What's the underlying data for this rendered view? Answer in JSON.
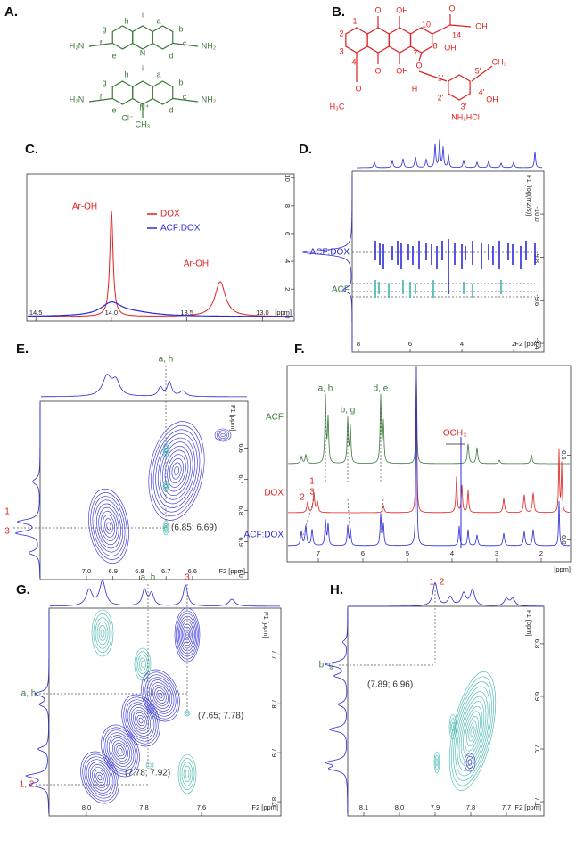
{
  "panels": [
    {
      "label": "A.",
      "structure": {
        "color": "#3b7a3b",
        "labels": [
          "h",
          "i",
          "a",
          "g",
          "b",
          "H₂N",
          "f",
          "c",
          "NH₂",
          "e",
          "N",
          "d",
          "h",
          "i",
          "a",
          "g",
          "b",
          "H₂N",
          "f",
          "c",
          "NH₂",
          "e",
          "Cl⁻",
          "N⁺",
          "d",
          "CH₃"
        ]
      }
    },
    {
      "label": "B.",
      "structure": {
        "color": "#e02020",
        "labels": [
          "1",
          "2",
          "3",
          "4",
          "O",
          "OH",
          "O",
          "OH",
          "10",
          "O",
          "14",
          "OH",
          "OH",
          "8",
          "7",
          "O",
          "H₃C",
          "O",
          "H",
          "1'",
          "2'",
          "3'",
          "4'",
          "5'",
          "CH₃",
          "OH",
          "NH₂HCl"
        ]
      }
    },
    {
      "label": "C.",
      "xlabel": "[ppm]",
      "xlim": [
        14.56,
        12.79
      ],
      "xticks": [
        14.5,
        {
          "value": 14,
          "label": "14.0"
        },
        13.5,
        {
          "value": 13,
          "label": "13.0"
        }
      ],
      "ylim": [
        -0.3,
        10.3
      ],
      "yticks": [
        0,
        2,
        4,
        6,
        8,
        10
      ],
      "legend": [
        {
          "name": "DOX",
          "color": "#e02020"
        },
        {
          "name": "ACF:DOX",
          "color": "#2a2ad8"
        }
      ],
      "annotations": [
        {
          "text": "Ar-OH",
          "color": "#e02020"
        },
        {
          "text": "Ar-OH",
          "color": "#e02020"
        }
      ]
    },
    {
      "label": "D.",
      "xlabel": "F2 [ppm]",
      "ylabel": "F1 [log(m2/s)]",
      "xlim": [
        8.24,
        0.83
      ],
      "xticks": [
        8,
        6,
        4,
        2
      ],
      "ylim": [
        -9.359,
        -10.199
      ],
      "yticks": [
        {
          "value": -10,
          "label": "-10.0"
        },
        -9.8,
        -9.6,
        -9.4
      ],
      "annotations": [
        {
          "text": "ACF:DOX",
          "color": "#2a2ad8"
        },
        {
          "text": "ACF",
          "color": "#3b7a3b"
        }
      ]
    },
    {
      "label": "E.",
      "xlabel": "F2 [ppm]",
      "ylabel": "F1 [ppm]",
      "xlim": [
        7.175,
        6.391
      ],
      "xticks": [
        {
          "value": 7,
          "label": "7.0"
        },
        6.9,
        6.8,
        6.7,
        6.6
      ],
      "ylim": [
        7.021,
        6.45
      ],
      "yticks": [
        6.6,
        6.7,
        6.8,
        6.9,
        {
          "value": 7,
          "label": "7.0"
        }
      ],
      "annotations": [
        {
          "text": "a, h",
          "color": "#3b7a3b"
        },
        {
          "text": "1",
          "color": "#e02020"
        },
        {
          "text": "3",
          "color": "#e02020"
        },
        {
          "text": "(6.85; 6.69)",
          "color": "#333333"
        }
      ]
    },
    {
      "label": "F.",
      "xlabel": "[ppm]",
      "xlim": [
        7.7,
        1.34
      ],
      "xticks": [
        7,
        6,
        5,
        4,
        3,
        2
      ],
      "ylim": [
        -0.13,
        1.03
      ],
      "yticks": [
        {
          "value": 0,
          "label": "0.0"
        },
        0.5
      ],
      "annotations": [
        {
          "text": "ACF",
          "color": "#3b7a3b"
        },
        {
          "text": "DOX",
          "color": "#e02020"
        },
        {
          "text": "ACF:DOX",
          "color": "#2a2ad8"
        },
        {
          "text": "a, h",
          "color": "#3b7a3b"
        },
        {
          "text": "b, g",
          "color": "#3b7a3b"
        },
        {
          "text": "d, e",
          "color": "#3b7a3b"
        },
        {
          "text": "OCH₃",
          "color": "#e02020"
        },
        {
          "text": "2",
          "color": "#e02020"
        },
        {
          "text": "1",
          "color": "#e02020"
        },
        {
          "text": "3",
          "color": "#e02020"
        }
      ]
    },
    {
      "label": "G.",
      "xlabel": "F2 [ppm]",
      "ylabel": "F1 [ppm]",
      "xlim": [
        8.13,
        7.324
      ],
      "xticks": [
        {
          "value": 8,
          "label": "8.0"
        },
        7.8,
        7.6
      ],
      "ylim": [
        8.029,
        7.605
      ],
      "yticks": [
        7.7,
        7.8,
        7.9,
        {
          "value": 8,
          "label": "8.0"
        }
      ],
      "annotations": [
        {
          "text": "a, h",
          "color": "#3b7a3b"
        },
        {
          "text": "3",
          "color": "#e02020"
        },
        {
          "text": "a, h",
          "color": "#3b7a3b"
        },
        {
          "text": "1, 2",
          "color": "#e02020"
        },
        {
          "text": "(7.65; 7.78)",
          "color": "#333333"
        },
        {
          "text": "(7.78; 7.92)",
          "color": "#333333"
        }
      ]
    },
    {
      "label": "H.",
      "xlabel": "F2 [ppm]",
      "ylabel": "F1 [ppm]",
      "xlim": [
        8.145,
        7.595
      ],
      "xticks": [
        8.1,
        {
          "value": 8,
          "label": "8.0"
        },
        7.9,
        7.8,
        7.7
      ],
      "ylim": [
        7.127,
        6.729
      ],
      "yticks": [
        6.8,
        6.9,
        {
          "value": 7,
          "label": "7.0"
        },
        7.1
      ],
      "annotations": [
        {
          "text": "1, 2",
          "color": "#e02020"
        },
        {
          "text": "b, g",
          "color": "#3b7a3b"
        },
        {
          "text": "(7.89; 6.96)",
          "color": "#333333"
        }
      ]
    }
  ]
}
